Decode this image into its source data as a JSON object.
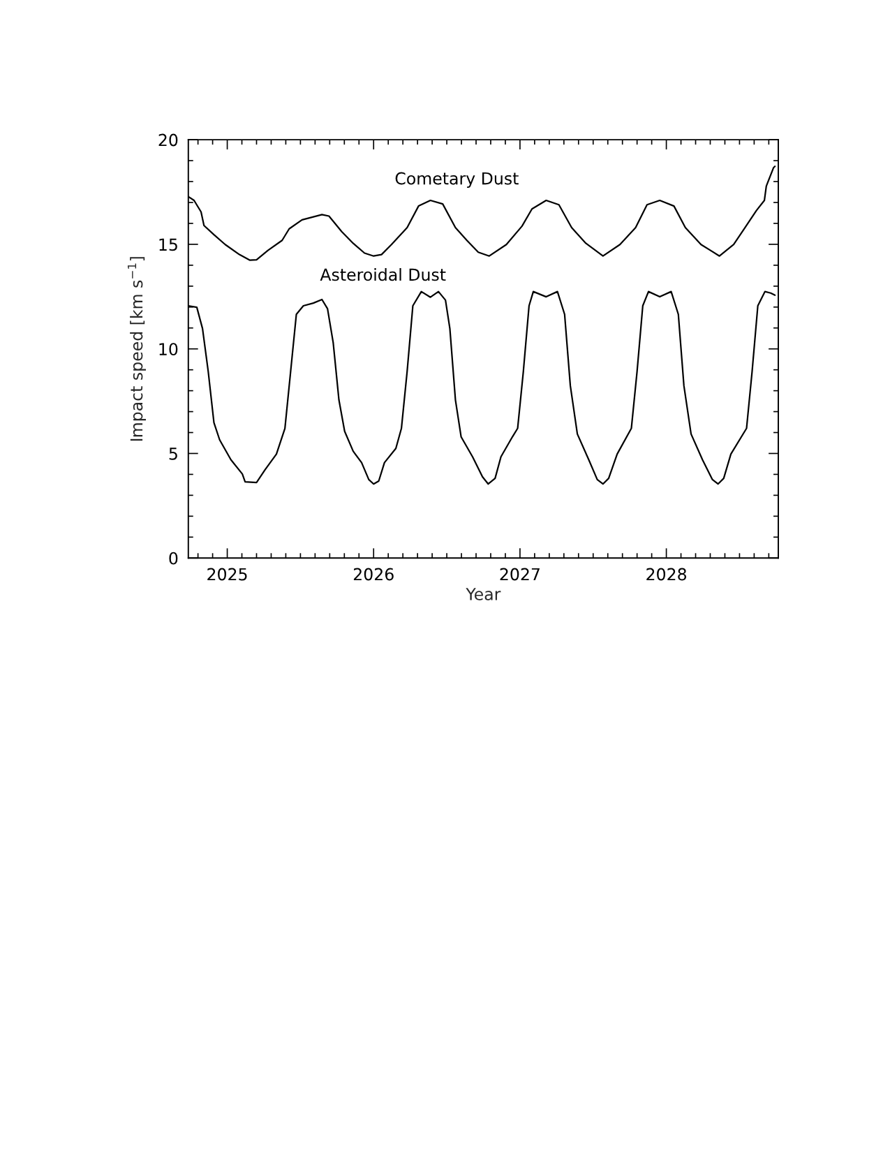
{
  "chart_data": {
    "type": "line",
    "xlabel": "Year",
    "ylabel": "Impact speed [km s$^{−1}$]",
    "xlim": [
      2024.734,
      2028.765
    ],
    "ylim": [
      0,
      20
    ],
    "xticks": [
      2025,
      2026,
      2027,
      2028
    ],
    "yticks": [
      0,
      5,
      10,
      15,
      20
    ],
    "grid": false,
    "legend": false,
    "marker": "none",
    "line_style": "solid",
    "series": [
      {
        "name": "Cometary Dust",
        "color": "#000000",
        "x": [
          2024.734,
          2024.773,
          2024.821,
          2024.841,
          2024.909,
          2024.986,
          2025.083,
          2025.155,
          2025.2,
          2025.278,
          2025.375,
          2025.423,
          2025.511,
          2025.647,
          2025.695,
          2025.783,
          2025.86,
          2025.938,
          2026.0,
          2026.054,
          2026.122,
          2026.229,
          2026.307,
          2026.388,
          2026.472,
          2026.559,
          2026.637,
          2026.715,
          2026.79,
          2026.907,
          2027.014,
          2027.082,
          2027.179,
          2027.266,
          2027.353,
          2027.45,
          2027.567,
          2027.683,
          2027.79,
          2027.868,
          2027.955,
          2028.052,
          2028.13,
          2028.237,
          2028.363,
          2028.46,
          2028.538,
          2028.616,
          2028.67,
          2028.683,
          2028.732,
          2028.742
        ],
        "values": [
          17.28,
          17.1,
          16.55,
          15.9,
          15.46,
          14.99,
          14.51,
          14.24,
          14.26,
          14.71,
          15.19,
          15.74,
          16.17,
          16.42,
          16.35,
          15.6,
          15.05,
          14.58,
          14.44,
          14.51,
          14.99,
          15.8,
          16.83,
          17.1,
          16.93,
          15.8,
          15.19,
          14.62,
          14.44,
          14.99,
          15.87,
          16.69,
          17.1,
          16.89,
          15.8,
          15.05,
          14.44,
          14.99,
          15.8,
          16.89,
          17.1,
          16.83,
          15.8,
          14.99,
          14.44,
          14.99,
          15.8,
          16.62,
          17.1,
          17.78,
          18.66,
          18.73
        ]
      },
      {
        "name": "Asteroidal Dust",
        "color": "#000000",
        "x": [
          2024.734,
          2024.792,
          2024.831,
          2024.87,
          2024.909,
          2024.948,
          2025.025,
          2025.103,
          2025.122,
          2025.2,
          2025.258,
          2025.336,
          2025.394,
          2025.433,
          2025.472,
          2025.52,
          2025.588,
          2025.647,
          2025.685,
          2025.724,
          2025.763,
          2025.802,
          2025.86,
          2025.918,
          2025.967,
          2026.0,
          2026.035,
          2026.074,
          2026.152,
          2026.19,
          2026.229,
          2026.268,
          2026.326,
          2026.388,
          2026.443,
          2026.491,
          2026.521,
          2026.559,
          2026.598,
          2026.676,
          2026.744,
          2026.783,
          2026.83,
          2026.87,
          2026.948,
          2026.984,
          2027.023,
          2027.062,
          2027.091,
          2027.179,
          2027.256,
          2027.305,
          2027.344,
          2027.392,
          2027.47,
          2027.528,
          2027.567,
          2027.606,
          2027.664,
          2027.761,
          2027.8,
          2027.839,
          2027.878,
          2027.955,
          2028.033,
          2028.082,
          2028.12,
          2028.169,
          2028.247,
          2028.315,
          2028.353,
          2028.392,
          2028.441,
          2028.548,
          2028.586,
          2028.625,
          2028.674,
          2028.713,
          2028.742
        ],
        "values": [
          12.06,
          11.99,
          10.97,
          8.92,
          6.47,
          5.65,
          4.7,
          4.02,
          3.64,
          3.61,
          4.22,
          4.97,
          6.2,
          8.92,
          11.65,
          12.06,
          12.19,
          12.36,
          11.92,
          10.29,
          7.56,
          6.06,
          5.11,
          4.56,
          3.75,
          3.54,
          3.68,
          4.56,
          5.24,
          6.2,
          8.92,
          12.06,
          12.74,
          12.47,
          12.74,
          12.33,
          10.97,
          7.56,
          5.79,
          4.84,
          3.88,
          3.54,
          3.81,
          4.84,
          5.79,
          6.2,
          8.92,
          12.06,
          12.74,
          12.49,
          12.74,
          11.65,
          8.24,
          5.93,
          4.7,
          3.75,
          3.54,
          3.81,
          4.97,
          6.2,
          8.92,
          12.06,
          12.74,
          12.49,
          12.74,
          11.65,
          8.24,
          5.93,
          4.7,
          3.75,
          3.54,
          3.81,
          4.97,
          6.2,
          8.92,
          12.06,
          12.74,
          12.67,
          12.57
        ]
      }
    ]
  }
}
